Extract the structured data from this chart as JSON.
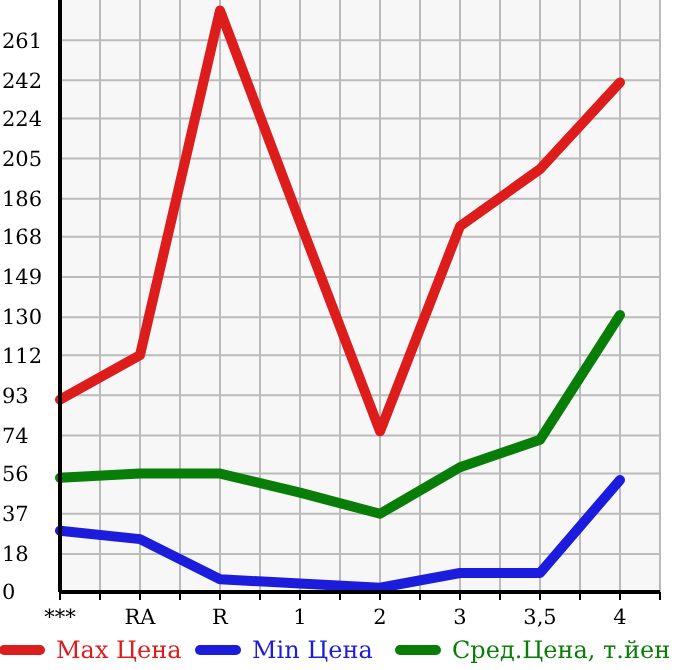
{
  "chart_data": {
    "type": "line",
    "categories": [
      "***",
      "RA",
      "R",
      "1",
      "2",
      "3",
      "3,5",
      "4"
    ],
    "ylim": [
      0,
      280
    ],
    "yticks": [
      0,
      18,
      37,
      56,
      74,
      93,
      112,
      130,
      149,
      168,
      186,
      205,
      224,
      242,
      261
    ],
    "grid": true,
    "legend": "bottom",
    "marker": "none",
    "line_style": "solid",
    "series": [
      {
        "name": "Max Цена",
        "color": "#dd1c1c",
        "values": [
          91,
          112,
          275,
          175,
          76,
          173,
          200,
          241
        ]
      },
      {
        "name": "Min Цена",
        "color": "#1c1cdd",
        "values": [
          29,
          25,
          6,
          4,
          2,
          9,
          9,
          53
        ]
      },
      {
        "name": "Сред.Цена, т.йен",
        "color": "#087d08",
        "values": [
          54,
          56,
          56,
          47,
          37,
          59,
          72,
          131
        ]
      }
    ]
  }
}
